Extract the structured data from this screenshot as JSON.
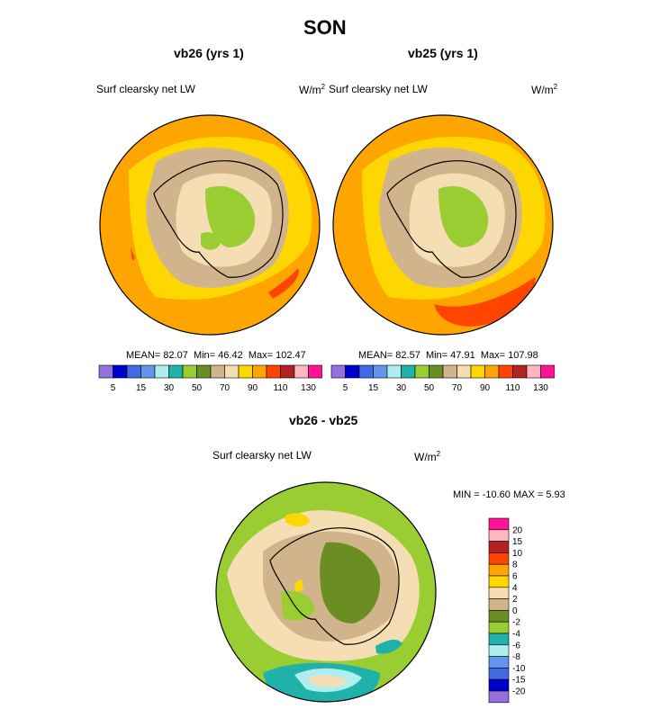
{
  "figure": {
    "title": "SON",
    "bottom_title": "vb26 - vb25"
  },
  "panels": [
    {
      "id": "vb26",
      "subtitle": "vb26 (yrs 1)",
      "variable": "Surf clearsky net LW",
      "units": "W/m",
      "units_sup": "2",
      "mean_label": "MEAN=",
      "mean": "82.07",
      "min_label": "Min=",
      "min": "46.42",
      "max_label": "Max=",
      "max": "102.47"
    },
    {
      "id": "vb25",
      "subtitle": "vb25 (yrs 1)",
      "variable": "Surf clearsky net LW",
      "units": "W/m",
      "units_sup": "2",
      "mean_label": "MEAN=",
      "mean": "82.57",
      "min_label": "Min=",
      "min": "47.91",
      "max_label": "Max=",
      "max": "107.98"
    }
  ],
  "diff_panel": {
    "variable": "Surf clearsky net LW",
    "units": "W/m",
    "units_sup": "2",
    "minmax_text": "MIN = -10.60  MAX =   5.93"
  },
  "chart_data": [
    {
      "type": "heatmap",
      "projection": "south polar stereographic",
      "title": "vb26 (yrs 1)",
      "variable": "Surf clearsky net LW",
      "units": "W/m2",
      "mean": 82.07,
      "min": 46.42,
      "max": 102.47,
      "levels": [
        5,
        10,
        15,
        20,
        30,
        40,
        50,
        60,
        70,
        80,
        90,
        100,
        110,
        120,
        130
      ],
      "tick_labels": [
        "5",
        "15",
        "30",
        "50",
        "70",
        "90",
        "110",
        "130"
      ],
      "colorbar_orientation": "horizontal"
    },
    {
      "type": "heatmap",
      "projection": "south polar stereographic",
      "title": "vb25 (yrs 1)",
      "variable": "Surf clearsky net LW",
      "units": "W/m2",
      "mean": 82.57,
      "min": 47.91,
      "max": 107.98,
      "levels": [
        5,
        10,
        15,
        20,
        30,
        40,
        50,
        60,
        70,
        80,
        90,
        100,
        110,
        120,
        130
      ],
      "tick_labels": [
        "5",
        "15",
        "30",
        "50",
        "70",
        "90",
        "110",
        "130"
      ],
      "colorbar_orientation": "horizontal"
    },
    {
      "type": "heatmap",
      "projection": "south polar stereographic",
      "title": "vb26 - vb25",
      "variable": "Surf clearsky net LW",
      "units": "W/m2",
      "min": -10.6,
      "max": 5.93,
      "levels": [
        20,
        15,
        10,
        8,
        6,
        4,
        2,
        0,
        -2,
        -4,
        -6,
        -8,
        -10,
        -15,
        -20
      ],
      "tick_labels": [
        "20",
        "15",
        "10",
        "8",
        "6",
        "4",
        "2",
        "0",
        "-2",
        "-4",
        "-6",
        "-8",
        "-10",
        "-15",
        "-20"
      ],
      "colorbar_orientation": "vertical"
    }
  ],
  "colors": {
    "abs_scale": [
      "#9370DB",
      "#0000CD",
      "#4169E1",
      "#6495ED",
      "#AFEEEE",
      "#20B2AA",
      "#9ACD32",
      "#6B8E23",
      "#D2B48C",
      "#F5DEB3",
      "#FFD700",
      "#FFA500",
      "#FF4500",
      "#B22222",
      "#FFB6C1",
      "#FF1493"
    ],
    "diff_scale": [
      "#FF1493",
      "#FFB6C1",
      "#B22222",
      "#FF4500",
      "#FFA500",
      "#FFD700",
      "#F5DEB3",
      "#D2B48C",
      "#6B8E23",
      "#9ACD32",
      "#20B2AA",
      "#AFEEEE",
      "#6495ED",
      "#4169E1",
      "#0000CD",
      "#9370DB"
    ],
    "continent_line": "#000000"
  }
}
